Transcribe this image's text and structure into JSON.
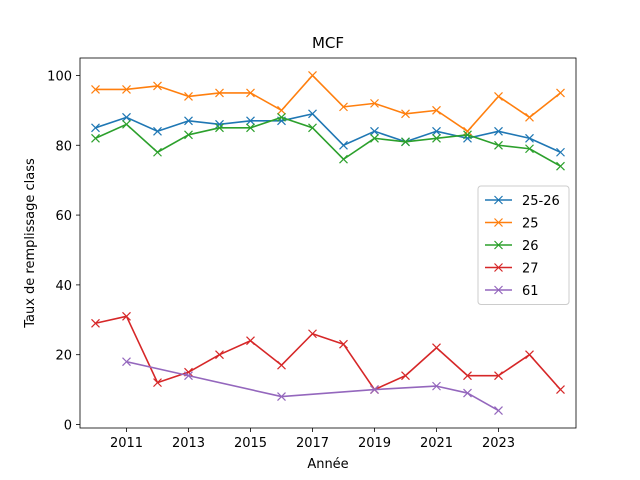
{
  "chart_data": {
    "type": "line",
    "title": "MCF",
    "xlabel": "Année",
    "ylabel": "Taux de remplissage class",
    "xlim": [
      2009.5,
      2025.5
    ],
    "ylim": [
      -1,
      105
    ],
    "xticks": [
      2011,
      2013,
      2015,
      2017,
      2019,
      2021,
      2023
    ],
    "yticks": [
      0,
      20,
      40,
      60,
      80,
      100
    ],
    "grid": false,
    "legend_position": "center-right",
    "marker": "x",
    "series": [
      {
        "name": "25-26",
        "color": "#1f77b4",
        "points": [
          [
            2010,
            85
          ],
          [
            2011,
            88
          ],
          [
            2012,
            84
          ],
          [
            2013,
            87
          ],
          [
            2014,
            86
          ],
          [
            2015,
            87
          ],
          [
            2016,
            87
          ],
          [
            2017,
            89
          ],
          [
            2018,
            80
          ],
          [
            2019,
            84
          ],
          [
            2020,
            81
          ],
          [
            2021,
            84
          ],
          [
            2022,
            82
          ],
          [
            2023,
            84
          ],
          [
            2024,
            82
          ],
          [
            2025,
            78
          ]
        ]
      },
      {
        "name": "25",
        "color": "#ff7f0e",
        "points": [
          [
            2010,
            96
          ],
          [
            2011,
            96
          ],
          [
            2012,
            97
          ],
          [
            2013,
            94
          ],
          [
            2014,
            95
          ],
          [
            2015,
            95
          ],
          [
            2016,
            90
          ],
          [
            2017,
            100
          ],
          [
            2018,
            91
          ],
          [
            2019,
            92
          ],
          [
            2020,
            89
          ],
          [
            2021,
            90
          ],
          [
            2022,
            84
          ],
          [
            2023,
            94
          ],
          [
            2024,
            88
          ],
          [
            2025,
            95
          ]
        ]
      },
      {
        "name": "26",
        "color": "#2ca02c",
        "points": [
          [
            2010,
            82
          ],
          [
            2011,
            86
          ],
          [
            2012,
            78
          ],
          [
            2013,
            83
          ],
          [
            2014,
            85
          ],
          [
            2015,
            85
          ],
          [
            2016,
            88
          ],
          [
            2017,
            85
          ],
          [
            2018,
            76
          ],
          [
            2019,
            82
          ],
          [
            2020,
            81
          ],
          [
            2021,
            82
          ],
          [
            2022,
            83
          ],
          [
            2023,
            80
          ],
          [
            2024,
            79
          ],
          [
            2025,
            74
          ]
        ]
      },
      {
        "name": "27",
        "color": "#d62728",
        "points": [
          [
            2010,
            29
          ],
          [
            2011,
            31
          ],
          [
            2012,
            12
          ],
          [
            2013,
            15
          ],
          [
            2014,
            20
          ],
          [
            2015,
            24
          ],
          [
            2016,
            17
          ],
          [
            2017,
            26
          ],
          [
            2018,
            23
          ],
          [
            2019,
            10
          ],
          [
            2020,
            14
          ],
          [
            2021,
            22
          ],
          [
            2022,
            14
          ],
          [
            2023,
            14
          ],
          [
            2024,
            20
          ],
          [
            2025,
            10
          ]
        ]
      },
      {
        "name": "61",
        "color": "#9467bd",
        "points": [
          [
            2011,
            18
          ],
          [
            2013,
            14
          ],
          [
            2016,
            8
          ],
          [
            2019,
            10
          ],
          [
            2021,
            11
          ],
          [
            2022,
            9
          ],
          [
            2023,
            4
          ]
        ]
      }
    ]
  }
}
